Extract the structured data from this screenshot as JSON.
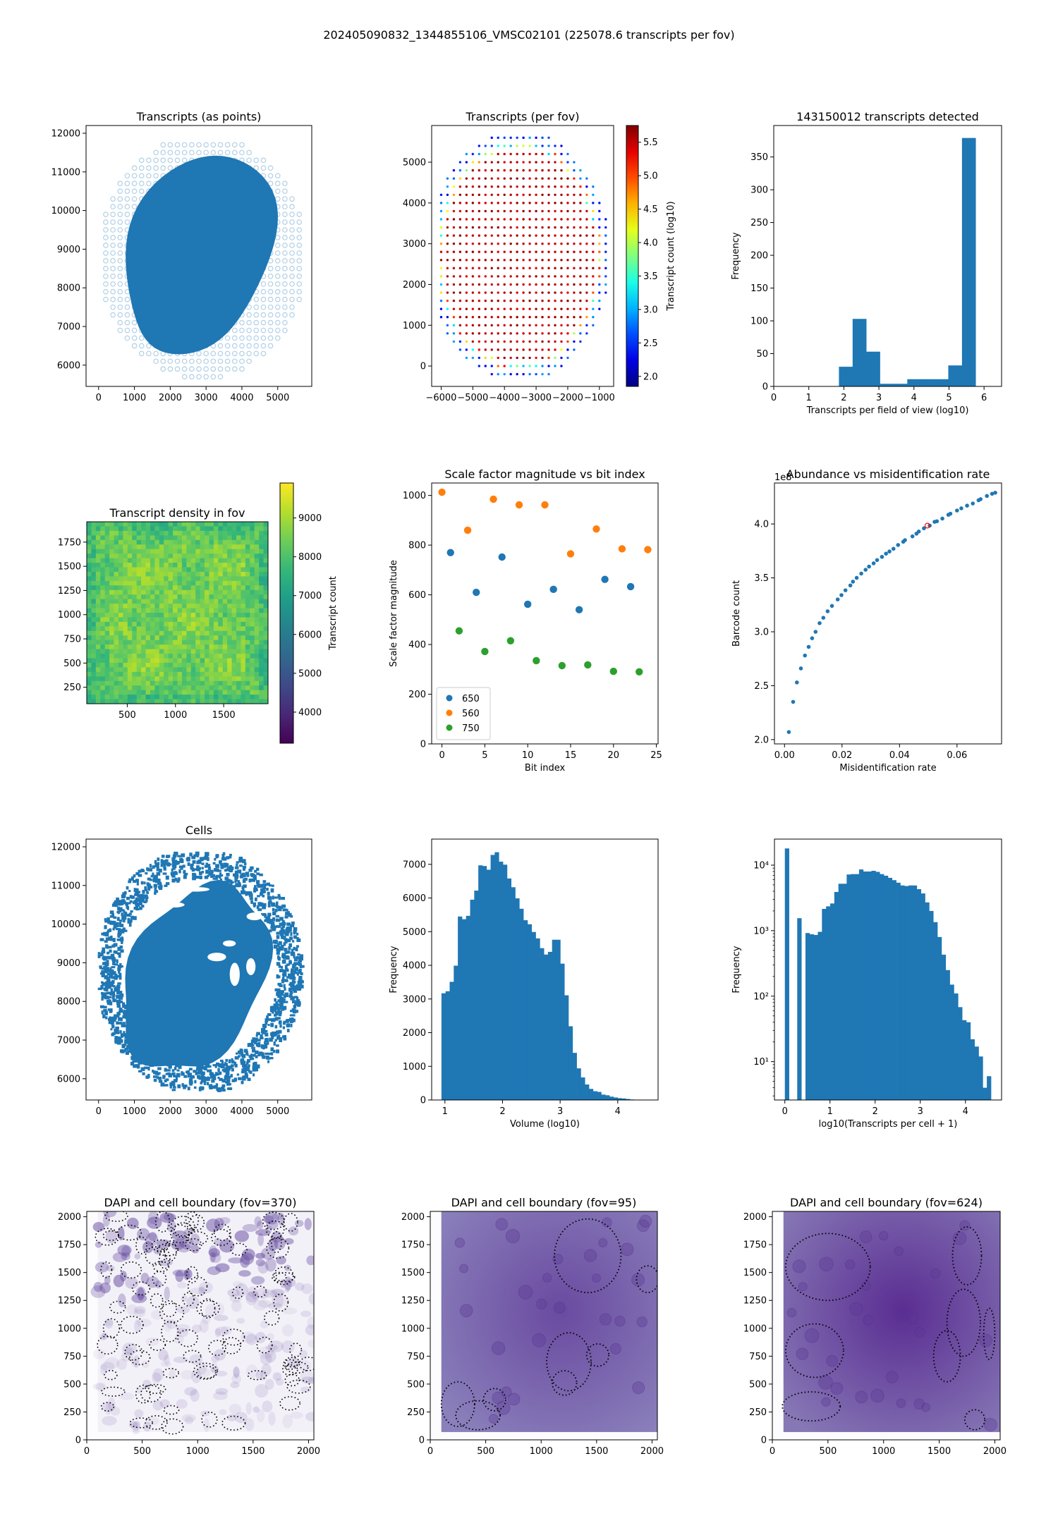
{
  "figure": {
    "suptitle": "202405090832_1344855106_VMSC02101 (225078.6 transcripts per fov)"
  },
  "colors": {
    "tab_blue": "#1f77b4",
    "tab_orange": "#ff7f0e",
    "tab_green": "#2ca02c",
    "highlight_red": "#ff0000"
  },
  "chart_data": [
    {
      "id": "transcripts-points",
      "type": "scatter",
      "title": "Transcripts (as points)",
      "xlabel": "",
      "ylabel": "",
      "xlim": [
        -350,
        5950
      ],
      "ylim": [
        5450,
        12200
      ],
      "xticks": [
        0,
        1000,
        2000,
        3000,
        4000,
        5000
      ],
      "yticks": [
        6000,
        7000,
        8000,
        9000,
        10000,
        11000,
        12000
      ],
      "description": "Dense tissue blob centered near (2800, 8900) with faint FOV grid halo"
    },
    {
      "id": "transcripts-per-fov",
      "type": "scatter",
      "title": "Transcripts (per fov)",
      "xlim": [
        -6300,
        -550
      ],
      "ylim": [
        -500,
        5900
      ],
      "xticks": [
        -6000,
        -5000,
        -4000,
        -3000,
        -2000,
        -1000
      ],
      "yticks": [
        0,
        1000,
        2000,
        3000,
        4000,
        5000
      ],
      "colorbar": {
        "label": "Transcript count (log10)",
        "range": [
          1.85,
          5.75
        ],
        "ticks": [
          2.0,
          2.5,
          3.0,
          3.5,
          4.0,
          4.5,
          5.0,
          5.5
        ],
        "cmap": "jet"
      },
      "grid_spacing": 200,
      "description": "Grid of FOV centers forming an ellipse; interior ~5.5-5.7, rim 2-3"
    },
    {
      "id": "fov-histogram",
      "type": "bar",
      "title": "143150012 transcripts detected",
      "xlabel": "Transcripts per field of view (log10)",
      "ylabel": "Frequency",
      "xlim": [
        0,
        6.5
      ],
      "ylim": [
        0,
        398
      ],
      "xticks": [
        0,
        1,
        2,
        3,
        4,
        5,
        6
      ],
      "yticks": [
        0,
        50,
        100,
        150,
        200,
        250,
        300,
        350
      ],
      "bin_edges": [
        1.86,
        2.25,
        2.64,
        3.03,
        3.42,
        3.81,
        4.2,
        4.59,
        4.98,
        5.37,
        5.76
      ],
      "values": [
        30,
        103,
        53,
        4,
        4,
        11,
        11,
        11,
        32,
        379
      ]
    },
    {
      "id": "transcript-density",
      "type": "heatmap",
      "title": "Transcript density in fov",
      "xlim": [
        80,
        1960
      ],
      "ylim": [
        80,
        1960
      ],
      "xticks": [
        500,
        1000,
        1500
      ],
      "yticks": [
        250,
        500,
        750,
        1000,
        1250,
        1500,
        1750
      ],
      "colorbar": {
        "label": "Transcript count",
        "range": [
          3200,
          9900
        ],
        "ticks": [
          4000,
          5000,
          6000,
          7000,
          8000,
          9000
        ],
        "cmap": "viridis"
      },
      "description": "Mostly uniform ~8000-9000, slightly lower near edges/corners"
    },
    {
      "id": "scale-factor",
      "type": "scatter",
      "title": "Scale factor magnitude vs bit index",
      "xlabel": "Bit index",
      "ylabel": "Scale factor magnitude",
      "xlim": [
        -1.2,
        25.2
      ],
      "ylim": [
        0,
        1050
      ],
      "xticks": [
        0,
        5,
        10,
        15,
        20,
        25
      ],
      "yticks": [
        0,
        200,
        400,
        600,
        800,
        1000
      ],
      "legend": "lower-left",
      "series": [
        {
          "name": "650",
          "color": "#1f77b4",
          "x": [
            1,
            4,
            7,
            10,
            13,
            16,
            19,
            22
          ],
          "y": [
            770,
            610,
            752,
            562,
            622,
            540,
            662,
            633
          ]
        },
        {
          "name": "560",
          "color": "#ff7f0e",
          "x": [
            0,
            3,
            6,
            9,
            12,
            15,
            18,
            21,
            24
          ],
          "y": [
            1013,
            860,
            985,
            962,
            962,
            765,
            865,
            785,
            782
          ]
        },
        {
          "name": "750",
          "color": "#2ca02c",
          "x": [
            2,
            5,
            8,
            11,
            14,
            17,
            20,
            23
          ],
          "y": [
            455,
            372,
            415,
            335,
            315,
            318,
            292,
            290
          ]
        }
      ]
    },
    {
      "id": "abundance-misid",
      "type": "scatter",
      "title": "Abundance vs misidentification rate",
      "xlabel": "Misidentification rate",
      "ylabel": "Barcode count",
      "offset_text": "1e8",
      "xlim": [
        -0.0035,
        0.0755
      ],
      "ylim": [
        1.96,
        4.38
      ],
      "xticks": [
        0.0,
        0.02,
        0.04,
        0.06
      ],
      "xticklabels": [
        "0.00",
        "0.02",
        "0.04",
        "0.06"
      ],
      "yticks": [
        2.0,
        2.5,
        3.0,
        3.5,
        4.0
      ],
      "yticklabels": [
        "2.0",
        "2.5",
        "3.0",
        "3.5",
        "4.0"
      ],
      "x": [
        0.0015,
        0.003,
        0.0043,
        0.0057,
        0.0071,
        0.0084,
        0.0096,
        0.0108,
        0.0122,
        0.0135,
        0.015,
        0.0165,
        0.0185,
        0.0198,
        0.0212,
        0.0229,
        0.0238,
        0.0251,
        0.0267,
        0.0282,
        0.0294,
        0.031,
        0.0322,
        0.0339,
        0.0353,
        0.0365,
        0.0379,
        0.0395,
        0.0413,
        0.0419,
        0.0445,
        0.0459,
        0.0467,
        0.0485,
        0.0505,
        0.0522,
        0.053,
        0.0549,
        0.057,
        0.0577,
        0.06,
        0.0615,
        0.0635,
        0.0655,
        0.0675,
        0.0682,
        0.0704,
        0.0722,
        0.0733
      ],
      "y": [
        2.07,
        2.35,
        2.53,
        2.66,
        2.78,
        2.86,
        2.94,
        3.0,
        3.08,
        3.13,
        3.19,
        3.24,
        3.3,
        3.34,
        3.385,
        3.43,
        3.465,
        3.5,
        3.54,
        3.575,
        3.605,
        3.635,
        3.665,
        3.695,
        3.725,
        3.745,
        3.77,
        3.805,
        3.835,
        3.85,
        3.885,
        3.91,
        3.93,
        3.96,
        3.985,
        4.02,
        4.025,
        4.05,
        4.085,
        4.095,
        4.125,
        4.145,
        4.17,
        4.19,
        4.22,
        4.23,
        4.26,
        4.28,
        4.29
      ],
      "highlight": {
        "x": 0.0497,
        "y": 3.985,
        "color": "#ff0000"
      }
    },
    {
      "id": "cells",
      "type": "scatter",
      "title": "Cells",
      "xlim": [
        -350,
        5950
      ],
      "ylim": [
        5450,
        12200
      ],
      "xticks": [
        0,
        1000,
        2000,
        3000,
        4000,
        5000
      ],
      "yticks": [
        6000,
        7000,
        8000,
        9000,
        10000,
        11000,
        12000
      ],
      "description": "Cell centroids filling tissue region with gaps near boundaries"
    },
    {
      "id": "volume-histogram",
      "type": "bar",
      "title": "",
      "xlabel": "Volume (log10)",
      "ylabel": "Frequency",
      "xlim": [
        0.77,
        4.7
      ],
      "ylim": [
        0,
        7750
      ],
      "xticks": [
        1,
        2,
        3,
        4
      ],
      "yticks": [
        0,
        1000,
        2000,
        3000,
        4000,
        5000,
        6000,
        7000
      ],
      "bin_start": 0.94,
      "bin_width": 0.0711,
      "values": [
        3170,
        3230,
        3510,
        3990,
        5450,
        5370,
        5470,
        5950,
        6220,
        6970,
        6950,
        6840,
        7280,
        7360,
        7080,
        6990,
        6580,
        6320,
        5990,
        5680,
        5340,
        5220,
        4990,
        4800,
        4510,
        4320,
        4400,
        4760,
        4760,
        4050,
        3110,
        2190,
        1400,
        940,
        670,
        460,
        330,
        260,
        240,
        160,
        140,
        100,
        75,
        55,
        45,
        30,
        15,
        5,
        0,
        0
      ]
    },
    {
      "id": "transcripts-per-cell",
      "type": "bar",
      "title": "",
      "xlabel": "log10(Transcripts per cell + 1)",
      "ylabel": "Frequency",
      "yscale": "log",
      "xlim": [
        -0.23,
        4.8
      ],
      "ylim": [
        2.6,
        25000
      ],
      "xticks": [
        0,
        1,
        2,
        3,
        4
      ],
      "yticks": [
        10,
        100,
        1000,
        10000
      ],
      "yticklabels": [
        "10¹",
        "10²",
        "10³",
        "10⁴"
      ],
      "bin_start": 0.0,
      "bin_width": 0.0913,
      "values": [
        18000,
        0,
        0,
        1550,
        0,
        920,
        880,
        860,
        960,
        2150,
        2350,
        2600,
        3900,
        5200,
        5200,
        7200,
        7300,
        7300,
        8600,
        8000,
        8000,
        8200,
        7900,
        7300,
        6900,
        6400,
        5900,
        5400,
        4900,
        4800,
        4900,
        4900,
        4300,
        3700,
        2700,
        2000,
        1350,
        800,
        430,
        250,
        150,
        110,
        68,
        43,
        40,
        22,
        17,
        12,
        4,
        6
      ]
    },
    {
      "id": "dapi-370",
      "type": "heatmap",
      "title": "DAPI and cell boundary (fov=370)",
      "xlim": [
        0,
        2048
      ],
      "ylim": [
        0,
        2048
      ],
      "xticks": [
        0,
        500,
        1000,
        1500,
        2000
      ],
      "yticks": [
        0,
        250,
        500,
        750,
        1000,
        1250,
        1500,
        1750,
        2000
      ],
      "cmap": "Purples"
    },
    {
      "id": "dapi-95",
      "type": "heatmap",
      "title": "DAPI and cell boundary (fov=95)",
      "xlim": [
        0,
        2048
      ],
      "ylim": [
        0,
        2048
      ],
      "xticks": [
        0,
        500,
        1000,
        1500,
        2000
      ],
      "yticks": [
        0,
        250,
        500,
        750,
        1000,
        1250,
        1500,
        1750,
        2000
      ],
      "cmap": "Purples"
    },
    {
      "id": "dapi-624",
      "type": "heatmap",
      "title": "DAPI and cell boundary (fov=624)",
      "xlim": [
        0,
        2048
      ],
      "ylim": [
        0,
        2048
      ],
      "xticks": [
        0,
        500,
        1000,
        1500,
        2000
      ],
      "yticks": [
        0,
        250,
        500,
        750,
        1000,
        1250,
        1500,
        1750,
        2000
      ],
      "cmap": "Purples"
    }
  ]
}
